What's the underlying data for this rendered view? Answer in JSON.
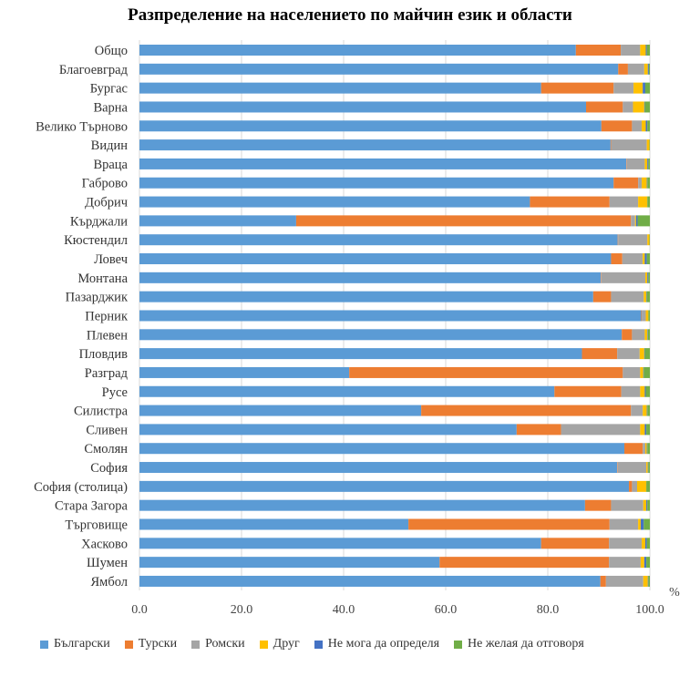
{
  "chart_data": {
    "type": "bar",
    "orientation": "horizontal",
    "stacked": true,
    "title": "Разпределение на населението по майчин език и области",
    "xlabel": "%",
    "xlim": [
      0,
      100
    ],
    "xticks": [
      "0.0",
      "20.0",
      "40.0",
      "60.0",
      "80.0",
      "100.0"
    ],
    "grid": true,
    "legend_position": "bottom",
    "categories": [
      "Общо",
      "Благоевград",
      "Бургас",
      "Варна",
      "Велико Търново",
      "Видин",
      "Враца",
      "Габрово",
      "Добрич",
      "Кърджали",
      "Кюстендил",
      "Ловеч",
      "Монтана",
      "Пазарджик",
      "Перник",
      "Плевен",
      "Пловдив",
      "Разград",
      "Русе",
      "Силистра",
      "Сливен",
      "Смолян",
      "София",
      "София (столица)",
      "Стара Загора",
      "Търговище",
      "Хасково",
      "Шумен",
      "Ямбол"
    ],
    "series": [
      {
        "name": "Български",
        "color": "#5B9BD5",
        "values": [
          85.5,
          93.8,
          78.7,
          87.5,
          90.5,
          92.3,
          95.4,
          92.9,
          76.5,
          30.7,
          93.7,
          92.4,
          90.4,
          88.9,
          98.3,
          94.5,
          86.7,
          41.1,
          81.3,
          55.2,
          73.9,
          95.0,
          93.6,
          95.9,
          87.3,
          52.7,
          78.7,
          58.8,
          90.3
        ]
      },
      {
        "name": "Турски",
        "color": "#ED7D31",
        "values": [
          8.8,
          1.9,
          14.2,
          7.2,
          6.0,
          0.1,
          0.1,
          4.8,
          15.6,
          65.6,
          0.1,
          2.2,
          0.1,
          3.5,
          0.1,
          2.0,
          6.9,
          53.6,
          13.1,
          41.1,
          8.7,
          3.6,
          0.1,
          0.6,
          5.1,
          39.4,
          13.3,
          33.2,
          1.1
        ]
      },
      {
        "name": "Ромски",
        "color": "#A5A5A5",
        "values": [
          3.8,
          3.2,
          3.9,
          2.0,
          1.9,
          7.0,
          3.5,
          0.7,
          5.6,
          0.8,
          5.7,
          4.0,
          8.6,
          6.4,
          0.8,
          2.5,
          4.4,
          3.4,
          3.7,
          2.3,
          15.5,
          0.5,
          5.6,
          1.0,
          6.3,
          5.6,
          6.4,
          6.2,
          7.3
        ]
      },
      {
        "name": "Друг",
        "color": "#FFC000",
        "values": [
          1.1,
          0.7,
          1.8,
          2.2,
          0.8,
          0.5,
          0.5,
          1.0,
          1.8,
          0.2,
          0.4,
          0.4,
          0.4,
          0.5,
          0.5,
          0.5,
          0.9,
          0.6,
          0.9,
          0.8,
          0.9,
          0.3,
          0.3,
          1.8,
          0.6,
          0.5,
          0.7,
          0.7,
          0.9
        ]
      },
      {
        "name": "Не мога да определя",
        "color": "#4472C4",
        "values": [
          0.2,
          0.2,
          0.5,
          0.1,
          0.3,
          0.0,
          0.2,
          0.1,
          0.0,
          0.3,
          0.0,
          0.4,
          0.2,
          0.1,
          0.0,
          0.1,
          0.1,
          0.1,
          0.2,
          0.1,
          0.3,
          0.1,
          0.1,
          0.0,
          0.2,
          0.6,
          0.3,
          0.4,
          0.1
        ]
      },
      {
        "name": "Не желая да отговоря",
        "color": "#70AD47",
        "values": [
          0.6,
          0.2,
          0.9,
          1.0,
          0.5,
          0.1,
          0.3,
          0.5,
          0.5,
          2.4,
          0.1,
          0.6,
          0.3,
          0.6,
          0.3,
          0.4,
          1.0,
          1.2,
          0.8,
          0.5,
          0.7,
          0.5,
          0.3,
          0.7,
          0.5,
          1.2,
          0.6,
          0.7,
          0.3
        ]
      }
    ]
  }
}
